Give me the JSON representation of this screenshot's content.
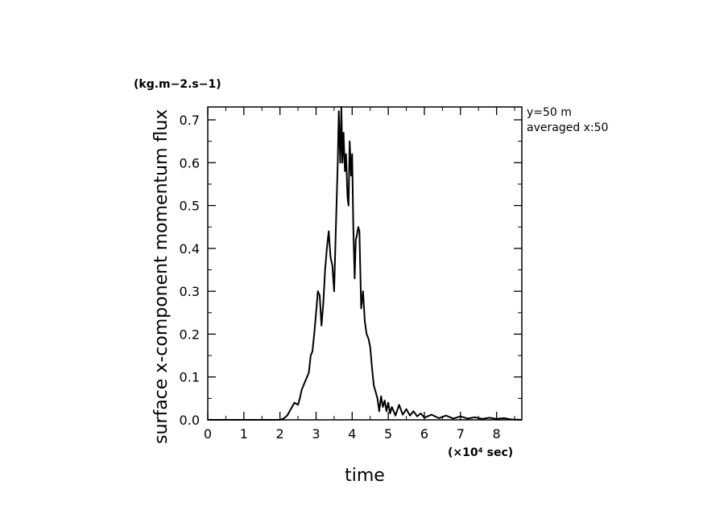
{
  "chart_data": {
    "type": "line",
    "xlabel": "time",
    "ylabel": "surface x-component momentum flux",
    "x_unit": "(×10⁴ sec)",
    "y_unit": "(kg.m−2.s−1)",
    "annotations": [
      "y=50 m",
      "averaged  x:50"
    ],
    "xlim": [
      0,
      8.7
    ],
    "ylim": [
      0,
      0.73
    ],
    "x_ticks": [
      "0",
      "1",
      "2",
      "3",
      "4",
      "5",
      "6",
      "7",
      "8"
    ],
    "y_ticks": [
      "0.0",
      "0.1",
      "0.2",
      "0.3",
      "0.4",
      "0.5",
      "0.6",
      "0.7"
    ],
    "grid": false,
    "series": [
      {
        "color": "#000000",
        "x": [
          0,
          2.0,
          2.1,
          2.2,
          2.3,
          2.4,
          2.5,
          2.55,
          2.6,
          2.7,
          2.8,
          2.85,
          2.9,
          2.95,
          3.0,
          3.05,
          3.1,
          3.15,
          3.2,
          3.25,
          3.3,
          3.35,
          3.4,
          3.45,
          3.5,
          3.55,
          3.6,
          3.63,
          3.67,
          3.7,
          3.73,
          3.76,
          3.8,
          3.83,
          3.87,
          3.9,
          3.93,
          3.97,
          4.0,
          4.03,
          4.07,
          4.1,
          4.13,
          4.17,
          4.2,
          4.25,
          4.3,
          4.35,
          4.4,
          4.45,
          4.5,
          4.55,
          4.6,
          4.7,
          4.75,
          4.8,
          4.85,
          4.9,
          4.95,
          5.0,
          5.05,
          5.1,
          5.2,
          5.3,
          5.4,
          5.5,
          5.6,
          5.7,
          5.8,
          5.9,
          6.0,
          6.2,
          6.4,
          6.6,
          6.8,
          7.0,
          7.2,
          7.4,
          7.6,
          7.8,
          8.0,
          8.2,
          8.4,
          8.7
        ],
        "y": [
          0,
          0.0,
          0.003,
          0.01,
          0.025,
          0.04,
          0.035,
          0.05,
          0.07,
          0.09,
          0.11,
          0.15,
          0.16,
          0.2,
          0.25,
          0.3,
          0.29,
          0.22,
          0.27,
          0.35,
          0.4,
          0.44,
          0.38,
          0.36,
          0.3,
          0.45,
          0.6,
          0.72,
          0.6,
          0.73,
          0.6,
          0.67,
          0.58,
          0.62,
          0.52,
          0.5,
          0.65,
          0.57,
          0.62,
          0.45,
          0.33,
          0.42,
          0.43,
          0.45,
          0.44,
          0.26,
          0.3,
          0.23,
          0.2,
          0.19,
          0.17,
          0.12,
          0.08,
          0.05,
          0.02,
          0.055,
          0.03,
          0.045,
          0.02,
          0.04,
          0.015,
          0.03,
          0.01,
          0.035,
          0.012,
          0.025,
          0.01,
          0.02,
          0.008,
          0.015,
          0.005,
          0.012,
          0.004,
          0.01,
          0.003,
          0.008,
          0.003,
          0.006,
          0.002,
          0.005,
          0.002,
          0.004,
          0.001,
          0.0
        ]
      }
    ]
  }
}
